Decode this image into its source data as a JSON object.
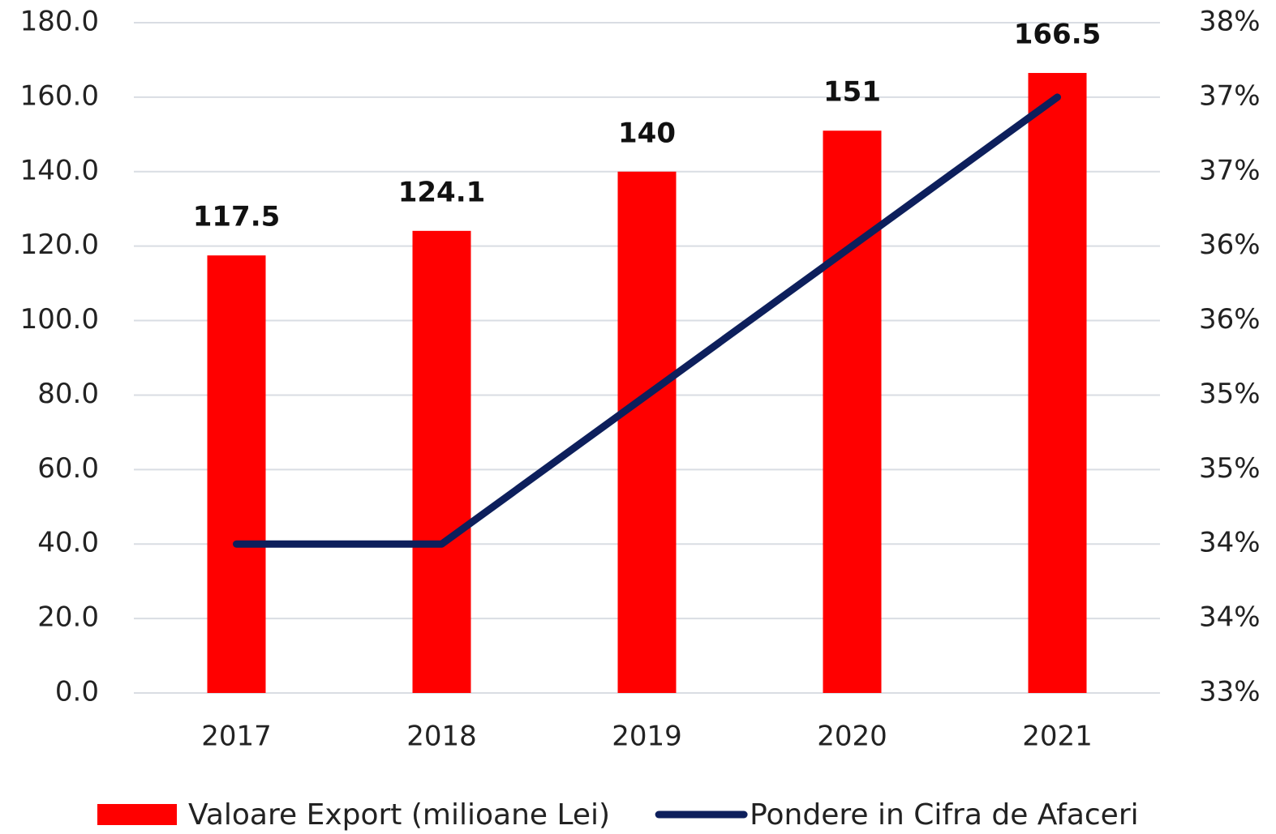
{
  "chart_data": {
    "type": "bar",
    "categories": [
      "2017",
      "2018",
      "2019",
      "2020",
      "2021"
    ],
    "series": [
      {
        "name": "Valoare Export (milioane Lei)",
        "type": "bar",
        "color": "#ff0000",
        "values": [
          117.5,
          124.1,
          140,
          151,
          166.5
        ]
      },
      {
        "name": "Pondere in Cifra de Afaceri",
        "type": "line",
        "axis": "y2",
        "color": "#0d1f5c",
        "values": [
          34,
          34,
          35,
          36,
          37
        ]
      }
    ],
    "ylim": [
      0,
      180
    ],
    "yticks": [
      {
        "value": 0,
        "label": "0.0"
      },
      {
        "value": 20,
        "label": "20.0"
      },
      {
        "value": 40,
        "label": "40.0"
      },
      {
        "value": 60,
        "label": "60.0"
      },
      {
        "value": 80,
        "label": "80.0"
      },
      {
        "value": 100,
        "label": "100.0"
      },
      {
        "value": 120,
        "label": "120.0"
      },
      {
        "value": 140,
        "label": "140.0"
      },
      {
        "value": 160,
        "label": "160.0"
      },
      {
        "value": 180,
        "label": "180.0"
      }
    ],
    "y2lim": [
      33,
      37.5
    ],
    "y2ticks": [
      {
        "value": 33,
        "label": "33%"
      },
      {
        "value": 33.5,
        "label": "34%"
      },
      {
        "value": 34,
        "label": "34%"
      },
      {
        "value": 34.5,
        "label": "35%"
      },
      {
        "value": 35,
        "label": "35%"
      },
      {
        "value": 35.5,
        "label": "36%"
      },
      {
        "value": 36,
        "label": "36%"
      },
      {
        "value": 36.5,
        "label": "37%"
      },
      {
        "value": 37,
        "label": "37%"
      },
      {
        "value": 37.5,
        "label": "38%"
      }
    ],
    "grid": true,
    "legend": "bottom"
  }
}
